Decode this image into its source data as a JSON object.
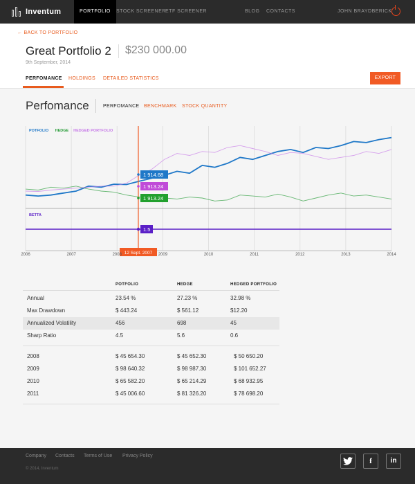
{
  "nav": {
    "brand": "Inventum",
    "links_left": [
      "PORTFOLIO",
      "STOCK SCREENER",
      "ETF SCREENER"
    ],
    "links_right": [
      "BLOG",
      "CONTACTS"
    ],
    "user": "JOHN BRAYDBERICK"
  },
  "header": {
    "back": "← BACK TO PORTFOLIO",
    "title": "Great Portfolio 2",
    "value": "$230 000.00",
    "date": "9th September, 2014",
    "tabs": [
      "PERFOMANCE",
      "HOLDINGS",
      "DETAILED STATISTICS"
    ],
    "export": "EXPORT"
  },
  "section": {
    "title": "Perfomance",
    "tabs": [
      "PERFOMANCE",
      "BENCHMARK",
      "STOCK QUANTITY"
    ]
  },
  "chart_data": {
    "type": "line",
    "x_labels": [
      "2006",
      "2007",
      "2008",
      "2009",
      "2010",
      "2011",
      "2012",
      "2013",
      "2014"
    ],
    "series": [
      {
        "name": "POTFOLIO",
        "color": "#1f78c8",
        "values": [
          1860,
          1855,
          1860,
          1870,
          1880,
          1905,
          1900,
          1915,
          1913,
          1930,
          1945,
          1960,
          1980,
          1970,
          2010,
          2000,
          2020,
          2050,
          2040,
          2060,
          2080,
          2090,
          2075,
          2100,
          2095,
          2110,
          2130,
          2125,
          2140,
          2150
        ]
      },
      {
        "name": "HEDGE",
        "color": "#2a9d3a",
        "values": [
          1890,
          1885,
          1900,
          1895,
          1905,
          1890,
          1880,
          1875,
          1860,
          1850,
          1855,
          1845,
          1840,
          1850,
          1845,
          1830,
          1835,
          1860,
          1855,
          1850,
          1865,
          1850,
          1830,
          1845,
          1860,
          1870,
          1855,
          1860,
          1850,
          1840
        ]
      },
      {
        "name": "HEDGED PORTFOLIO",
        "color": "#c77be8",
        "values": [
          1880,
          1878,
          1885,
          1890,
          1895,
          1900,
          1905,
          1905,
          1920,
          1960,
          1990,
          2040,
          2070,
          2060,
          2080,
          2075,
          2100,
          2110,
          2095,
          2080,
          2060,
          2075,
          2070,
          2055,
          2040,
          2050,
          2060,
          2080,
          2070,
          2090
        ]
      }
    ],
    "betta": {
      "name": "BETTA",
      "color": "#5a1fc7",
      "value": "1.5"
    },
    "marker": {
      "date": "12 Sept. 2007",
      "label_potfolio": "1 914.68",
      "label_hedged": "1 913.24",
      "label_hedge": "1 913.24",
      "color": "#f15a24"
    }
  },
  "stats": {
    "columns": [
      "POTFOLIO",
      "HEDGE",
      "HEDGED PORTFOLIO"
    ],
    "metrics": [
      {
        "label": "Annual",
        "values": [
          "23.54 %",
          "27.23 %",
          "32.98 %"
        ]
      },
      {
        "label": "Max Drawdown",
        "values": [
          "$ 443.24",
          "$ 561.12",
          "$12.20"
        ]
      },
      {
        "label": "Annualized Volatility",
        "values": [
          "456",
          "698",
          "45"
        ]
      },
      {
        "label": "Sharp Ratio",
        "values": [
          "4.5",
          "5.6",
          "0.6"
        ]
      }
    ],
    "years": [
      {
        "label": "2008",
        "values": [
          "$ 45 654.30",
          "$ 45 652.30",
          "$ 50 650.20"
        ]
      },
      {
        "label": "2009",
        "values": [
          "$ 98 640.32",
          "$ 98 987.30",
          "$ 101 652.27"
        ]
      },
      {
        "label": "2010",
        "values": [
          "$ 65 582.20",
          "$ 65 214.29",
          "$ 68 932.95"
        ]
      },
      {
        "label": "2011",
        "values": [
          "$ 45 006.60",
          "$ 81 326.20",
          "$ 78 698.20"
        ]
      }
    ]
  },
  "footer": {
    "links": [
      "Company",
      "Contacts",
      "Terms of Use",
      "Privacy Policy"
    ],
    "copyright": "© 2014, Inventum",
    "social": [
      "twitter-icon",
      "facebook-icon",
      "linkedin-icon"
    ]
  }
}
